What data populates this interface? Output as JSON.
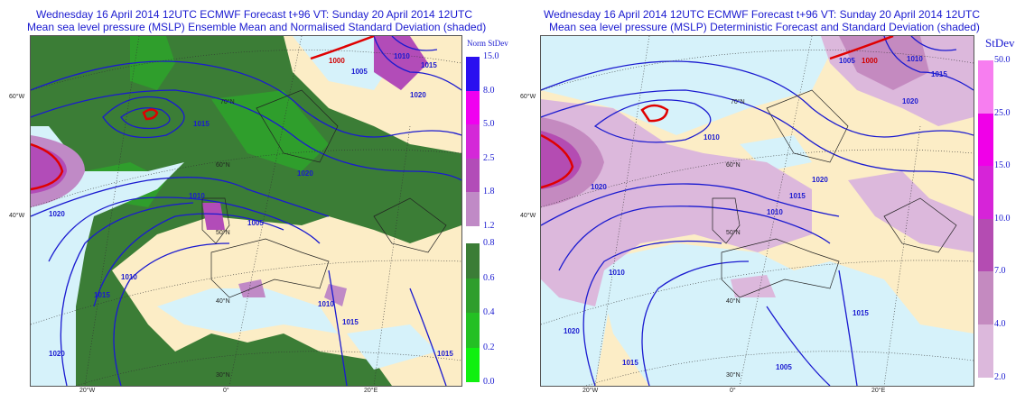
{
  "left": {
    "title_line1": "Wednesday 16 April 2014 12UTC ECMWF Forecast t+96  VT: Sunday 20 April 2014 12UTC",
    "title_line2": "Mean sea level pressure (MSLP) Ensemble Mean and Normalised Standard Deviation (shaded)",
    "legend_title": "Norm StDev",
    "legend_upper": [
      {
        "value": "15.0",
        "color": "#2a10f0"
      },
      {
        "value": "8.0",
        "color": "#f000f0"
      },
      {
        "value": "5.0",
        "color": "#d428d8"
      },
      {
        "value": "2.5",
        "color": "#b24cb8"
      },
      {
        "value": "1.8",
        "color": "#c08ac6"
      },
      {
        "value": "1.2",
        "color": null
      }
    ],
    "legend_lower": [
      {
        "value": "0.8",
        "color": "#3b7d36"
      },
      {
        "value": "0.6",
        "color": "#2f9e2c"
      },
      {
        "value": "0.4",
        "color": "#23c023"
      },
      {
        "value": "0.2",
        "color": "#10f010"
      },
      {
        "value": "0.0",
        "color": null
      }
    ],
    "isobar_labels": [
      "1000",
      "1005",
      "1010",
      "1015",
      "1020",
      "1020",
      "1010",
      "1005",
      "1015",
      "1010",
      "1020",
      "1015",
      "1010",
      "1015",
      "1015",
      "1020"
    ],
    "lat_labels": [
      "70°N",
      "60°N",
      "50°N",
      "40°N",
      "30°N"
    ],
    "side_labels": [
      "60°W",
      "40°W"
    ],
    "lon_labels": [
      "20°W",
      "0°",
      "20°E"
    ]
  },
  "right": {
    "title_line1": "Wednesday 16 April 2014 12UTC ECMWF Forecast t+96  VT: Sunday 20 April 2014 12UTC",
    "title_line2": "Mean sea level pressure (MSLP) Deterministic Forecast and Standard Deviation (shaded)",
    "legend_title": "StDev",
    "legend": [
      {
        "value": "50.0",
        "color": "#f77ef0"
      },
      {
        "value": "25.0",
        "color": "#f000e8"
      },
      {
        "value": "15.0",
        "color": "#d624d8"
      },
      {
        "value": "10.0",
        "color": "#b44cb2"
      },
      {
        "value": "7.0",
        "color": "#c48ac0"
      },
      {
        "value": "4.0",
        "color": "#dcb8dc"
      },
      {
        "value": "2.0",
        "color": null
      }
    ],
    "isobar_labels": [
      "1005",
      "1000",
      "1010",
      "1015",
      "1020",
      "1010",
      "1020",
      "1020",
      "1015",
      "1010",
      "1010",
      "1015",
      "1020",
      "1015",
      "1005"
    ],
    "lat_labels": [
      "70°N",
      "60°N",
      "50°N",
      "40°N",
      "30°N"
    ],
    "side_labels": [
      "60°W",
      "40°W"
    ],
    "lon_labels": [
      "20°W",
      "0°",
      "20°E"
    ]
  },
  "colors": {
    "isobar": "#1a1ad0",
    "low_isobar": "#e00000",
    "land": "#fcedc6",
    "sea_low": "#d6f2fa"
  }
}
